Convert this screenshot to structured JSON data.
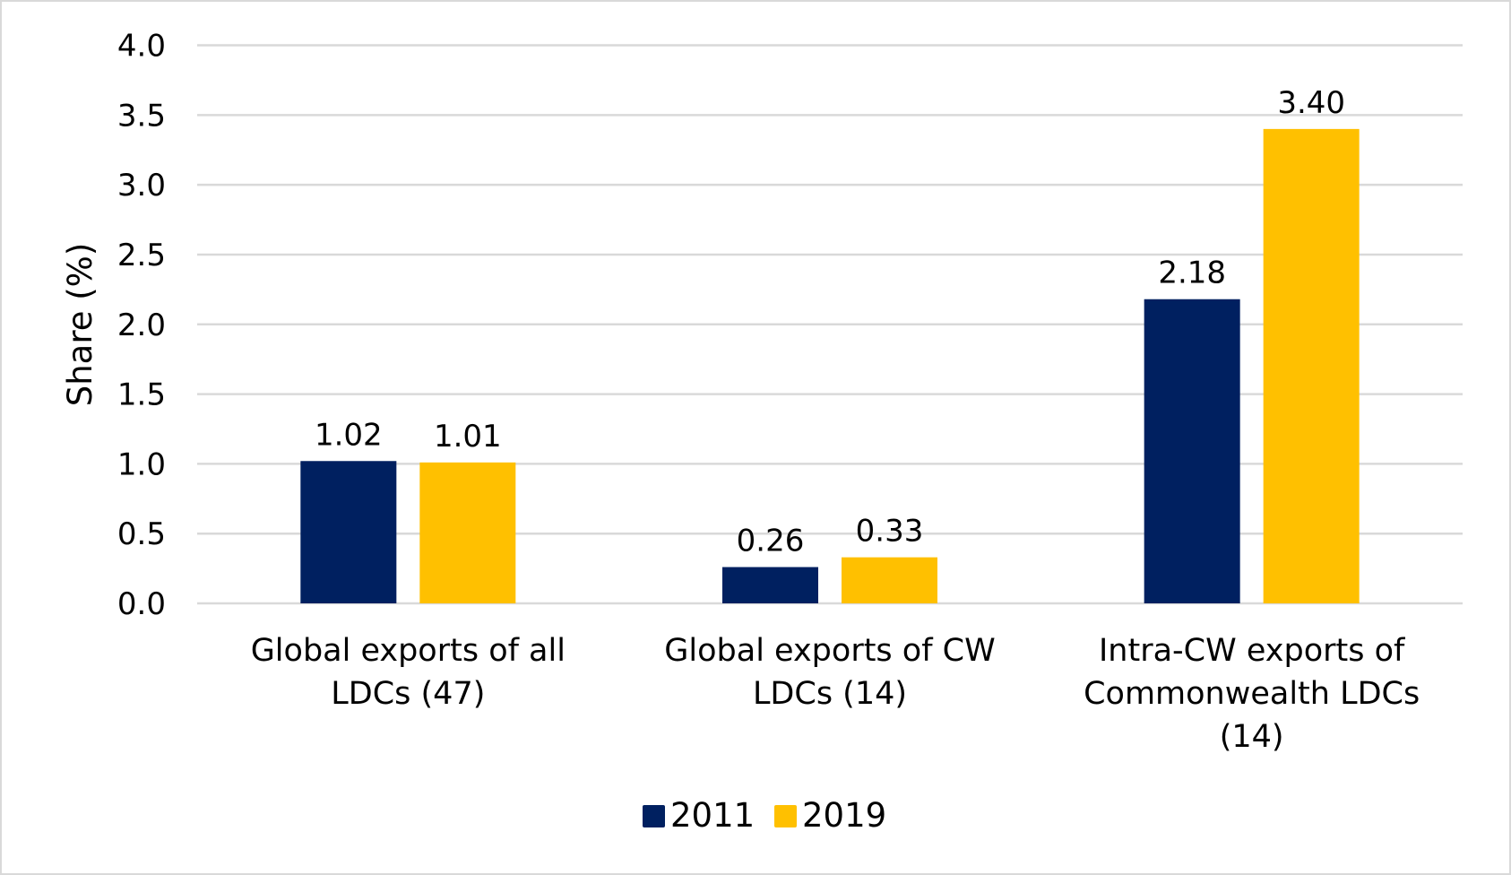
{
  "chart_data": {
    "type": "bar",
    "title": "",
    "xlabel": "",
    "ylabel": "Share (%)",
    "ylim": [
      0,
      4.0
    ],
    "yticks": [
      "0.0",
      "0.5",
      "1.0",
      "1.5",
      "2.0",
      "2.5",
      "3.0",
      "3.5",
      "4.0"
    ],
    "grid": true,
    "legend_placement": "bottom",
    "categories": [
      [
        "Global exports of all",
        "LDCs (47)"
      ],
      [
        "Global exports of CW",
        "LDCs (14)"
      ],
      [
        "Intra-CW exports of",
        "Commonwealth LDCs",
        "(14)"
      ]
    ],
    "series": [
      {
        "name": "2011",
        "color": "#002060",
        "values": [
          1.02,
          0.26,
          2.18
        ],
        "labels": [
          "1.02",
          "0.26",
          "2.18"
        ]
      },
      {
        "name": "2019",
        "color": "#FFC000",
        "values": [
          1.01,
          0.33,
          3.4
        ],
        "labels": [
          "1.01",
          "0.33",
          "3.40"
        ]
      }
    ]
  }
}
